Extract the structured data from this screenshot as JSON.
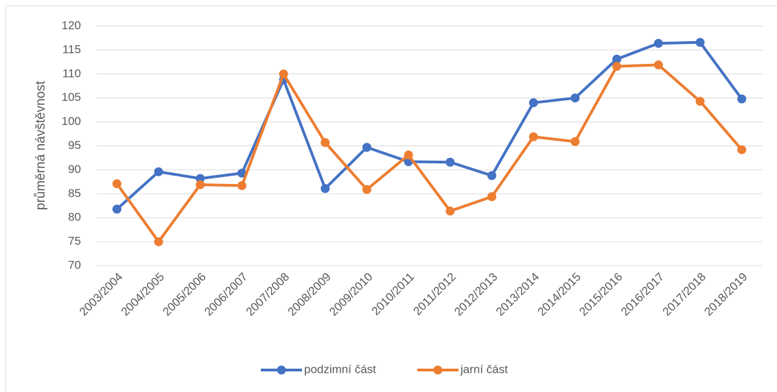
{
  "chart_data": {
    "type": "line",
    "y_label": "průměrná návštěvnost",
    "categories": [
      "2003/2004",
      "2004/2005",
      "2005/2006",
      "2006/2007",
      "2007/2008",
      "2008/2009",
      "2009/2010",
      "2010/2011",
      "2011/2012",
      "2012/2013",
      "2013/2014",
      "2014/2015",
      "2015/2016",
      "2016/2017",
      "2017/2018",
      "2018/2019"
    ],
    "series": [
      {
        "name": "podzimní část",
        "color": "#4472c4",
        "values": [
          81.8,
          89.6,
          88.2,
          89.3,
          108.8,
          86.1,
          94.7,
          91.7,
          91.6,
          88.8,
          104.0,
          105.0,
          113.1,
          116.4,
          116.6,
          104.8
        ]
      },
      {
        "name": "jarní část",
        "color": "#ed7d31",
        "values": [
          87.1,
          75.0,
          86.9,
          86.7,
          110.0,
          95.7,
          85.9,
          93.1,
          81.4,
          84.4,
          96.9,
          95.9,
          111.6,
          111.9,
          104.3,
          94.2
        ]
      }
    ],
    "ylim": [
      70,
      120
    ],
    "yticks": [
      70,
      75,
      80,
      85,
      90,
      95,
      100,
      105,
      110,
      115,
      120
    ],
    "grid": true,
    "legend": "bottom"
  }
}
